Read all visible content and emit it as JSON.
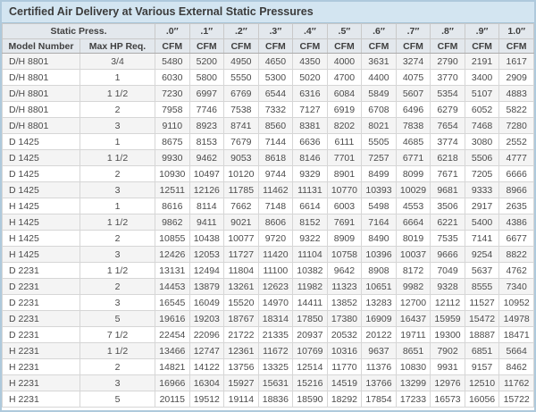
{
  "title": "Certified Air Delivery at Various External Static Pressures",
  "table": {
    "static_press_label": "Static Press.",
    "model_header": "Model Number",
    "hp_header": "Max HP Req.",
    "unit_label": "CFM",
    "pressure_columns": [
      ".0″",
      ".1″",
      ".2″",
      ".3″",
      ".4″",
      ".5″",
      ".6″",
      ".7″",
      ".8″",
      ".9″",
      "1.0″"
    ],
    "rows": [
      {
        "model": "D/H 8801",
        "hp": "3/4",
        "cfm": [
          5480,
          5200,
          4950,
          4650,
          4350,
          4000,
          3631,
          3274,
          2790,
          2191,
          1617
        ]
      },
      {
        "model": "D/H 8801",
        "hp": "1",
        "cfm": [
          6030,
          5800,
          5550,
          5300,
          5020,
          4700,
          4400,
          4075,
          3770,
          3400,
          2909
        ]
      },
      {
        "model": "D/H 8801",
        "hp": "1 1/2",
        "cfm": [
          7230,
          6997,
          6769,
          6544,
          6316,
          6084,
          5849,
          5607,
          5354,
          5107,
          4883
        ]
      },
      {
        "model": "D/H 8801",
        "hp": "2",
        "cfm": [
          7958,
          7746,
          7538,
          7332,
          7127,
          6919,
          6708,
          6496,
          6279,
          6052,
          5822
        ]
      },
      {
        "model": "D/H 8801",
        "hp": "3",
        "cfm": [
          9110,
          8923,
          8741,
          8560,
          8381,
          8202,
          8021,
          7838,
          7654,
          7468,
          7280
        ]
      },
      {
        "model": "D 1425",
        "hp": "1",
        "cfm": [
          8675,
          8153,
          7679,
          7144,
          6636,
          6111,
          5505,
          4685,
          3774,
          3080,
          2552
        ]
      },
      {
        "model": "D 1425",
        "hp": "1 1/2",
        "cfm": [
          9930,
          9462,
          9053,
          8618,
          8146,
          7701,
          7257,
          6771,
          6218,
          5506,
          4777
        ]
      },
      {
        "model": "D 1425",
        "hp": "2",
        "cfm": [
          10930,
          10497,
          10120,
          9744,
          9329,
          8901,
          8499,
          8099,
          7671,
          7205,
          6666
        ]
      },
      {
        "model": "D 1425",
        "hp": "3",
        "cfm": [
          12511,
          12126,
          11785,
          11462,
          11131,
          10770,
          10393,
          10029,
          9681,
          9333,
          8966
        ]
      },
      {
        "model": "H 1425",
        "hp": "1",
        "cfm": [
          8616,
          8114,
          7662,
          7148,
          6614,
          6003,
          5498,
          4553,
          3506,
          2917,
          2635
        ]
      },
      {
        "model": "H 1425",
        "hp": "1 1/2",
        "cfm": [
          9862,
          9411,
          9021,
          8606,
          8152,
          7691,
          7164,
          6664,
          6221,
          5400,
          4386
        ]
      },
      {
        "model": "H 1425",
        "hp": "2",
        "cfm": [
          10855,
          10438,
          10077,
          9720,
          9322,
          8909,
          8490,
          8019,
          7535,
          7141,
          6677
        ]
      },
      {
        "model": "H 1425",
        "hp": "3",
        "cfm": [
          12426,
          12053,
          11727,
          11420,
          11104,
          10758,
          10396,
          10037,
          9666,
          9254,
          8822
        ]
      },
      {
        "model": "D 2231",
        "hp": "1 1/2",
        "cfm": [
          13131,
          12494,
          11804,
          11100,
          10382,
          9642,
          8908,
          8172,
          7049,
          5637,
          4762
        ]
      },
      {
        "model": "D 2231",
        "hp": "2",
        "cfm": [
          14453,
          13879,
          13261,
          12623,
          11982,
          11323,
          10651,
          9982,
          9328,
          8555,
          7340
        ]
      },
      {
        "model": "D 2231",
        "hp": "3",
        "cfm": [
          16545,
          16049,
          15520,
          14970,
          14411,
          13852,
          13283,
          12700,
          12112,
          11527,
          10952
        ]
      },
      {
        "model": "D 2231",
        "hp": "5",
        "cfm": [
          19616,
          19203,
          18767,
          18314,
          17850,
          17380,
          16909,
          16437,
          15959,
          15472,
          14978
        ]
      },
      {
        "model": "D 2231",
        "hp": "7 1/2",
        "cfm": [
          22454,
          22096,
          21722,
          21335,
          20937,
          20532,
          20122,
          19711,
          19300,
          18887,
          18471
        ]
      },
      {
        "model": "H 2231",
        "hp": "1 1/2",
        "cfm": [
          13466,
          12747,
          12361,
          11672,
          10769,
          10316,
          9637,
          8651,
          7902,
          6851,
          5664
        ]
      },
      {
        "model": "H 2231",
        "hp": "2",
        "cfm": [
          14821,
          14122,
          13756,
          13325,
          12514,
          11770,
          11376,
          10830,
          9931,
          9157,
          8462
        ]
      },
      {
        "model": "H 2231",
        "hp": "3",
        "cfm": [
          16966,
          16304,
          15927,
          15631,
          15216,
          14519,
          13766,
          13299,
          12976,
          12510,
          11762
        ]
      },
      {
        "model": "H 2231",
        "hp": "5",
        "cfm": [
          20115,
          19512,
          19114,
          18836,
          18590,
          18292,
          17854,
          17233,
          16573,
          16056,
          15722
        ]
      }
    ]
  },
  "colors": {
    "title_bg": "#d3e5f1",
    "header_bg": "#e3e8ed",
    "stripe_bg": "#f4f4f4",
    "frame_border": "#aec9dc",
    "text": "#4b4b4b"
  }
}
